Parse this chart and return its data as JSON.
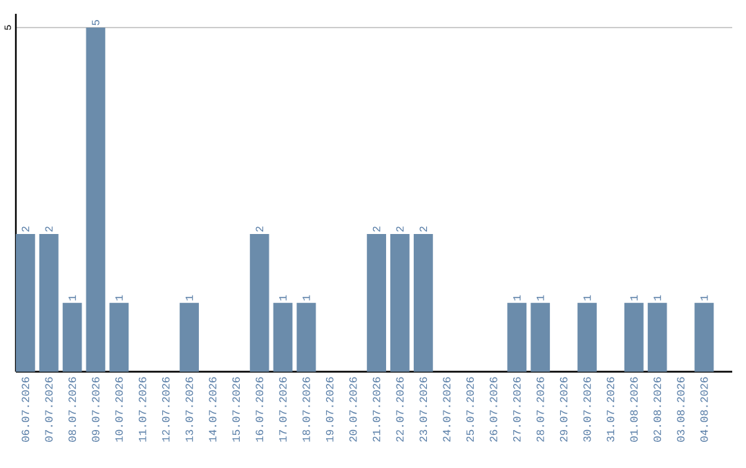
{
  "chart_data": {
    "type": "bar",
    "categories": [
      "06.07.2026",
      "07.07.2026",
      "08.07.2026",
      "09.07.2026",
      "10.07.2026",
      "11.07.2026",
      "12.07.2026",
      "13.07.2026",
      "14.07.2026",
      "15.07.2026",
      "16.07.2026",
      "17.07.2026",
      "18.07.2026",
      "19.07.2026",
      "20.07.2026",
      "21.07.2026",
      "22.07.2026",
      "23.07.2026",
      "24.07.2026",
      "25.07.2026",
      "26.07.2026",
      "27.07.2026",
      "28.07.2026",
      "29.07.2026",
      "30.07.2026",
      "31.07.2026",
      "01.08.2026",
      "02.08.2026",
      "03.08.2026",
      "04.08.2026"
    ],
    "values": [
      2,
      2,
      1,
      5,
      1,
      0,
      0,
      1,
      0,
      0,
      2,
      1,
      1,
      0,
      0,
      2,
      2,
      2,
      0,
      0,
      0,
      1,
      1,
      0,
      1,
      0,
      1,
      1,
      0,
      1
    ],
    "value_labels": [
      "2",
      "2",
      "1",
      "5",
      "1",
      null,
      null,
      "1",
      null,
      null,
      "2",
      "1",
      "1",
      null,
      null,
      "2",
      "2",
      "2",
      null,
      null,
      null,
      "1",
      "1",
      null,
      "1",
      null,
      "1",
      "1",
      null,
      "1"
    ],
    "color": "#6b8cab",
    "ylim": [
      0,
      5.2
    ],
    "yticks": [
      5
    ],
    "grid": "y"
  }
}
